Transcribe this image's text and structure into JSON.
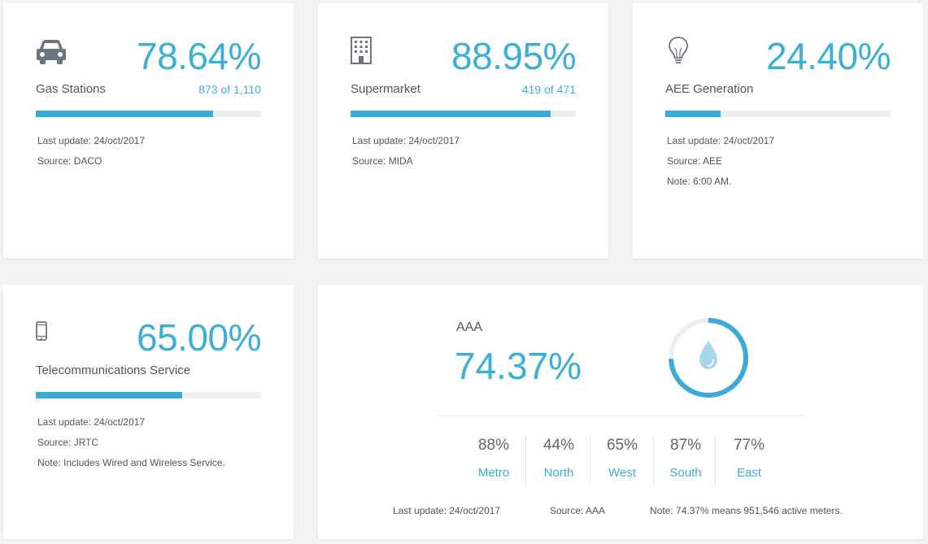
{
  "cards": {
    "gas": {
      "percent": "78.64%",
      "label": "Gas Stations",
      "count": "873 of 1,110",
      "progress": 0.7864,
      "last_update": "Last update: 24/oct/2017",
      "source": "Source: DACO"
    },
    "supermarket": {
      "percent": "88.95%",
      "label": "Supermarket",
      "count": "419 of 471",
      "progress": 0.8895,
      "last_update": "Last update: 24/oct/2017",
      "source": "Source: MIDA"
    },
    "aee": {
      "percent": "24.40%",
      "label": "AEE Generation",
      "progress": 0.244,
      "last_update": "Last update: 24/oct/2017",
      "source": "Source: AEE",
      "note": "Note: 6:00 AM."
    },
    "telecom": {
      "percent": "65.00%",
      "label": "Telecommunications Service",
      "progress": 0.65,
      "last_update": "Last update: 24/oct/2017",
      "source": "Source: JRTC",
      "note": "Note: Includes Wired and Wireless Service."
    },
    "aaa": {
      "title": "AAA",
      "percent": "74.37%",
      "progress": 0.7437,
      "regions": [
        {
          "pct": "88%",
          "name": "Metro"
        },
        {
          "pct": "44%",
          "name": "North"
        },
        {
          "pct": "65%",
          "name": "West"
        },
        {
          "pct": "87%",
          "name": "South"
        },
        {
          "pct": "77%",
          "name": "East"
        }
      ],
      "last_update": "Last update: 24/oct/2017",
      "source": "Source: AAA",
      "note": "Note: 74.37% means 951,546 active meters."
    }
  },
  "colors": {
    "accent": "#3cafd6",
    "bar_fill": "#3aaad6",
    "bar_track": "#eeeeee",
    "icon": "#6a7580",
    "drop": "#a9d7ea"
  }
}
